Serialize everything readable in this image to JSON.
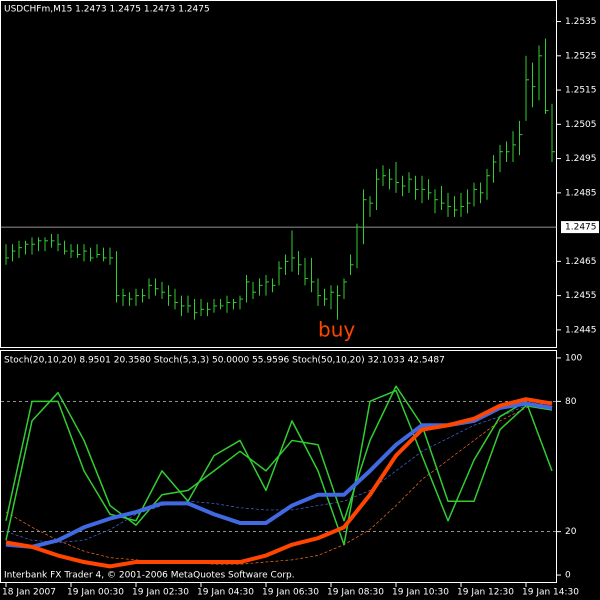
{
  "chart_data": [
    {
      "type": "ohlc",
      "title": "USDCHFm,M15  1.2473 1.2475 1.2473 1.2475",
      "color": "#32cd32",
      "annotation": "buy",
      "annotation_color": "#ff4500",
      "current_price": 1.2475,
      "ylim": [
        1.244,
        1.2541
      ],
      "yticks": [
        1.2445,
        1.2455,
        1.2465,
        1.2485,
        1.2495,
        1.2505,
        1.2515,
        1.2525,
        1.2535
      ],
      "categories": [
        "18 Jan 2007",
        null,
        null,
        null,
        null,
        null,
        null,
        null,
        null,
        null,
        "19 Jan 00:30",
        null,
        null,
        null,
        null,
        null,
        null,
        null,
        null,
        null,
        "19 Jan 02:30",
        null,
        null,
        null,
        null,
        null,
        null,
        null,
        null,
        null,
        "19 Jan 04:30",
        null,
        null,
        null,
        null,
        null,
        null,
        null,
        null,
        null,
        "19 Jan 06:30",
        null,
        null,
        null,
        null,
        null,
        null,
        null,
        null,
        null,
        "19 Jan 08:30",
        null,
        null,
        null,
        null,
        null,
        null,
        null,
        null,
        null,
        "19 Jan 10:30",
        null,
        null,
        null,
        null,
        null,
        null,
        null,
        null,
        null,
        "19 Jan 12:30",
        null,
        null,
        null,
        null,
        null,
        null,
        null,
        null,
        null,
        "19 Jan 14:30",
        null,
        null,
        null,
        null
      ],
      "high": [
        1.247,
        1.247,
        1.2471,
        1.2471,
        1.2472,
        1.2472,
        1.2472,
        1.2473,
        1.2473,
        1.2471,
        1.247,
        1.247,
        1.247,
        1.2469,
        1.247,
        1.2469,
        1.2469,
        1.2468,
        1.2457,
        1.2456,
        1.2457,
        1.2457,
        1.246,
        1.246,
        1.2459,
        1.2458,
        1.2457,
        1.2455,
        1.2455,
        1.2454,
        1.2454,
        1.2453,
        1.2454,
        1.2454,
        1.2455,
        1.2454,
        1.2455,
        1.2461,
        1.2459,
        1.246,
        1.2461,
        1.246,
        1.2465,
        1.2467,
        1.2474,
        1.2468,
        1.2466,
        1.2466,
        1.246,
        1.2457,
        1.2458,
        1.2458,
        1.246,
        1.2467,
        1.2476,
        1.2486,
        1.2484,
        1.2492,
        1.2493,
        1.2492,
        1.2494,
        1.249,
        1.2491,
        1.249,
        1.249,
        1.2489,
        1.2486,
        1.2487,
        1.2485,
        1.2484,
        1.2485,
        1.2486,
        1.2488,
        1.2488,
        1.2492,
        1.2496,
        1.2499,
        1.25,
        1.2503,
        1.2506,
        1.2525,
        1.2523,
        1.2528,
        1.253,
        1.2511
      ],
      "low": [
        1.2464,
        1.2465,
        1.2466,
        1.2467,
        1.2467,
        1.2468,
        1.2468,
        1.2469,
        1.2468,
        1.2467,
        1.2466,
        1.2466,
        1.2465,
        1.2465,
        1.2466,
        1.2465,
        1.2464,
        1.2453,
        1.2452,
        1.2452,
        1.2452,
        1.2453,
        1.2454,
        1.2455,
        1.2454,
        1.2452,
        1.2451,
        1.2449,
        1.245,
        1.2448,
        1.2449,
        1.2449,
        1.245,
        1.2451,
        1.245,
        1.2451,
        1.2451,
        1.2453,
        1.2454,
        1.2455,
        1.2455,
        1.2456,
        1.2458,
        1.2461,
        1.2462,
        1.2461,
        1.2458,
        1.2456,
        1.2452,
        1.2452,
        1.2451,
        1.2448,
        1.2454,
        1.2461,
        1.2463,
        1.247,
        1.2478,
        1.248,
        1.2487,
        1.2486,
        1.2485,
        1.2484,
        1.2485,
        1.2483,
        1.2482,
        1.2483,
        1.2479,
        1.248,
        1.2478,
        1.2478,
        1.2478,
        1.2479,
        1.2481,
        1.2482,
        1.2483,
        1.2488,
        1.2491,
        1.2494,
        1.2494,
        1.2496,
        1.2506,
        1.251,
        1.2512,
        1.2508,
        1.2494
      ],
      "close": [
        1.2466,
        1.2468,
        1.2469,
        1.247,
        1.247,
        1.2471,
        1.2471,
        1.2471,
        1.247,
        1.2468,
        1.2468,
        1.2467,
        1.2468,
        1.2466,
        1.2467,
        1.2466,
        1.2466,
        1.2455,
        1.2455,
        1.2454,
        1.2455,
        1.2455,
        1.2458,
        1.2457,
        1.2456,
        1.2455,
        1.2453,
        1.2452,
        1.2452,
        1.245,
        1.2451,
        1.2451,
        1.2452,
        1.2452,
        1.2453,
        1.2453,
        1.2454,
        1.2459,
        1.2456,
        1.2458,
        1.2459,
        1.2458,
        1.2463,
        1.2465,
        1.2466,
        1.2464,
        1.246,
        1.2459,
        1.2455,
        1.2454,
        1.2456,
        1.2455,
        1.2459,
        1.2464,
        1.2475,
        1.2483,
        1.2482,
        1.2489,
        1.249,
        1.2489,
        1.2488,
        1.2487,
        1.2489,
        1.2486,
        1.2486,
        1.2485,
        1.2483,
        1.2482,
        1.2481,
        1.248,
        1.2481,
        1.2482,
        1.2486,
        1.2485,
        1.249,
        1.2494,
        1.2497,
        1.2497,
        1.2499,
        1.2502,
        1.2518,
        1.2516,
        1.2525,
        1.2509,
        1.2497
      ]
    },
    {
      "type": "line",
      "title": "Stoch(20,10,20) 8.9501 20.3580  Stoch(5,3,3) 50.0000 55.9596  Stoch(50,10,20) 32.1033 42.5487",
      "footer": "Interbank FX Trader 4, © 2001-2006 MetaQuotes Software Corp.",
      "x": [
        0,
        4,
        8,
        12,
        16,
        20,
        24,
        28,
        32,
        36,
        40,
        44,
        48,
        52,
        56,
        60,
        64,
        68,
        72,
        76,
        80,
        84
      ],
      "xlim": [
        0,
        84
      ],
      "ylim": [
        -3.2,
        103.2
      ],
      "yticks": [
        0,
        20,
        80,
        100
      ],
      "series": [
        {
          "color": "#ff6a20",
          "width": 0.7,
          "dash": true,
          "values": [
            29,
            22,
            16,
            11,
            8,
            7,
            6,
            6,
            5,
            5,
            6,
            7,
            9,
            14,
            21,
            32,
            44,
            53,
            62,
            71,
            77,
            80
          ]
        },
        {
          "color": "#4169e1",
          "width": 0.7,
          "dash": true,
          "values": [
            20,
            16,
            15,
            16,
            21,
            28,
            32,
            34,
            33,
            31,
            30,
            30,
            32,
            34,
            39,
            48,
            57,
            63,
            69,
            73,
            78,
            80
          ]
        },
        {
          "color": "#32cd32",
          "width": 1.5,
          "dash": false,
          "values": [
            16,
            71,
            84,
            62,
            32,
            23,
            37,
            39,
            48,
            57,
            48,
            62,
            60,
            25,
            62,
            87,
            69,
            34,
            34,
            67,
            78,
            76
          ]
        },
        {
          "color": "#32cd32",
          "width": 1.5,
          "dash": false,
          "values": [
            25,
            80,
            80,
            48,
            28,
            25,
            48,
            34,
            55,
            62,
            39,
            71,
            48,
            14,
            80,
            85,
            55,
            25,
            53,
            73,
            80,
            48
          ]
        },
        {
          "color": "#4169e1",
          "width": 4,
          "dash": false,
          "values": [
            14,
            13,
            16,
            22,
            26,
            29,
            33,
            33,
            28,
            24,
            24,
            32,
            37,
            37,
            48,
            60,
            69,
            69,
            71,
            77,
            79,
            77
          ]
        },
        {
          "color": "#ff4500",
          "width": 4,
          "dash": false,
          "values": [
            15,
            13,
            9,
            6,
            4,
            6,
            6,
            6,
            6,
            6,
            9,
            14,
            17,
            22,
            37,
            55,
            67,
            69,
            72,
            78,
            81,
            79
          ]
        }
      ]
    }
  ]
}
